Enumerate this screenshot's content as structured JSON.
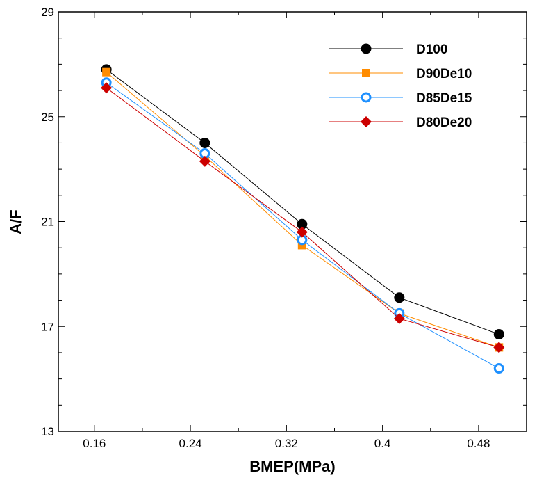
{
  "chart_data": {
    "type": "line",
    "title": "",
    "xlabel": "BMEP(MPa)",
    "ylabel": "A/F",
    "xlim": [
      0.13,
      0.52
    ],
    "ylim": [
      13,
      29
    ],
    "xticks": [
      0.16,
      0.24,
      0.32,
      0.4,
      0.48
    ],
    "xtick_labels": [
      "0.16",
      "0.24",
      "0.32",
      "0.4",
      "0.48"
    ],
    "yticks": [
      13,
      17,
      21,
      25,
      29
    ],
    "ytick_labels": [
      "13",
      "17",
      "21",
      "25",
      "29"
    ],
    "y_minor_step": 1,
    "legend_position": "top-right",
    "series": [
      {
        "name": "D100",
        "color": "#000000",
        "marker": "circle-filled",
        "x": [
          0.17,
          0.252,
          0.333,
          0.414,
          0.497
        ],
        "y": [
          26.8,
          24.0,
          20.9,
          18.1,
          16.7
        ]
      },
      {
        "name": "D90De10",
        "color": "#ff8c00",
        "marker": "square-filled",
        "x": [
          0.17,
          0.252,
          0.333,
          0.414,
          0.497
        ],
        "y": [
          26.7,
          23.5,
          20.1,
          17.5,
          16.2
        ]
      },
      {
        "name": "D85De15",
        "color": "#1e90ff",
        "marker": "circle-open",
        "x": [
          0.17,
          0.252,
          0.333,
          0.414,
          0.497
        ],
        "y": [
          26.3,
          23.6,
          20.3,
          17.5,
          15.4
        ]
      },
      {
        "name": "D80De20",
        "color": "#cc0000",
        "marker": "diamond-filled",
        "x": [
          0.17,
          0.252,
          0.333,
          0.414,
          0.497
        ],
        "y": [
          26.1,
          23.3,
          20.6,
          17.3,
          16.2
        ]
      }
    ]
  }
}
